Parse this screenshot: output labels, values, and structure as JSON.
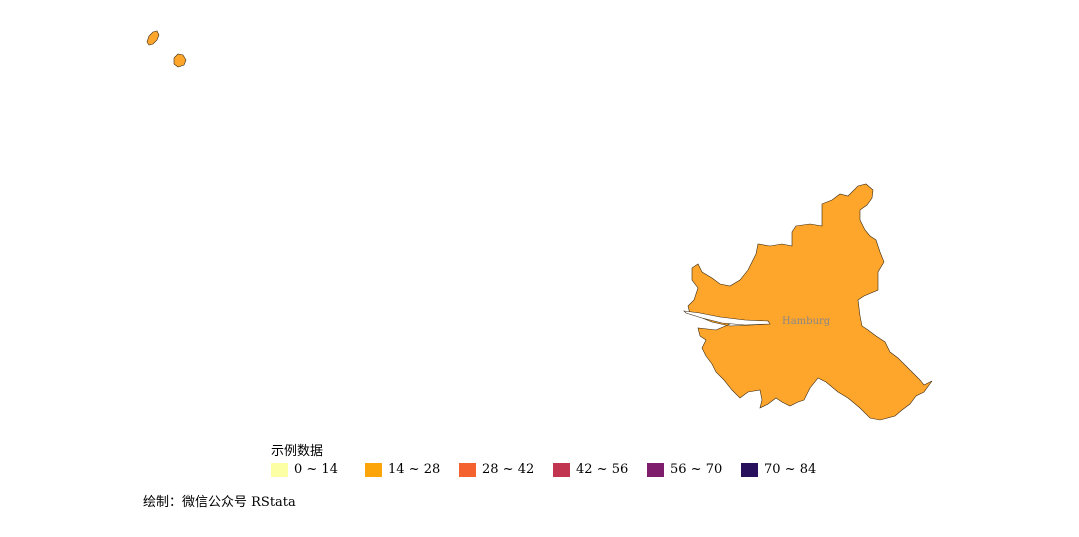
{
  "map": {
    "region_label": "Hamburg",
    "region_value_class": "14 ~ 28",
    "fill_color": "#FEA52C",
    "stroke_color": "#3a2a10"
  },
  "legend": {
    "title": "示例数据",
    "items": [
      {
        "label": "0 ~ 14",
        "color": "#FCFFA4"
      },
      {
        "label": "14 ~ 28",
        "color": "#FCA50A"
      },
      {
        "label": "28 ~ 42",
        "color": "#F3622F"
      },
      {
        "label": "42 ~ 56",
        "color": "#C13550"
      },
      {
        "label": "56 ~ 70",
        "color": "#7E1D6C"
      },
      {
        "label": "70 ~ 84",
        "color": "#28105C"
      }
    ]
  },
  "caption": "绘制：微信公众号 RStata"
}
